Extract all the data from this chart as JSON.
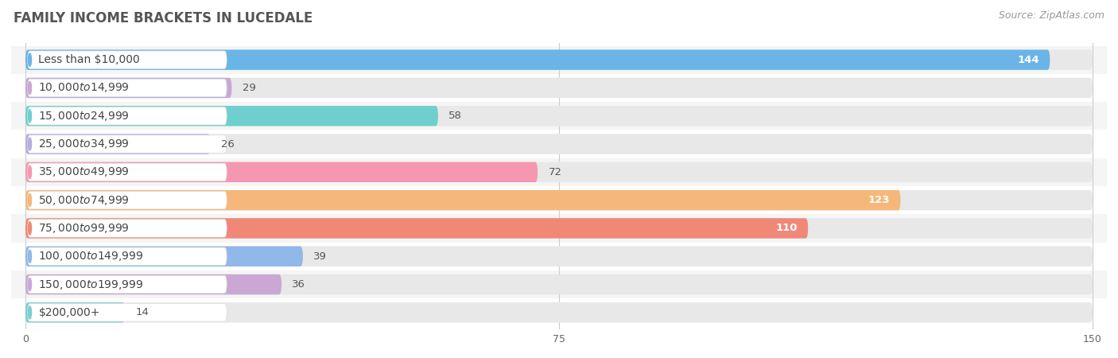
{
  "title": "FAMILY INCOME BRACKETS IN LUCEDALE",
  "source": "Source: ZipAtlas.com",
  "categories": [
    "Less than $10,000",
    "$10,000 to $14,999",
    "$15,000 to $24,999",
    "$25,000 to $34,999",
    "$35,000 to $49,999",
    "$50,000 to $74,999",
    "$75,000 to $99,999",
    "$100,000 to $149,999",
    "$150,000 to $199,999",
    "$200,000+"
  ],
  "values": [
    144,
    29,
    58,
    26,
    72,
    123,
    110,
    39,
    36,
    14
  ],
  "bar_colors": [
    "#6ab4e8",
    "#c9a8d4",
    "#6ecfcc",
    "#b3aee0",
    "#f597b0",
    "#f5b87a",
    "#f08878",
    "#90b8e8",
    "#c9a8d4",
    "#7dcfcf"
  ],
  "xlim": [
    0,
    150
  ],
  "xticks": [
    0,
    75,
    150
  ],
  "background_color": "#ffffff",
  "bar_bg_color": "#e8e8e8",
  "row_bg_colors": [
    "#f5f5f5",
    "#ffffff"
  ],
  "title_fontsize": 12,
  "label_fontsize": 10,
  "value_fontsize": 9.5,
  "source_fontsize": 9
}
